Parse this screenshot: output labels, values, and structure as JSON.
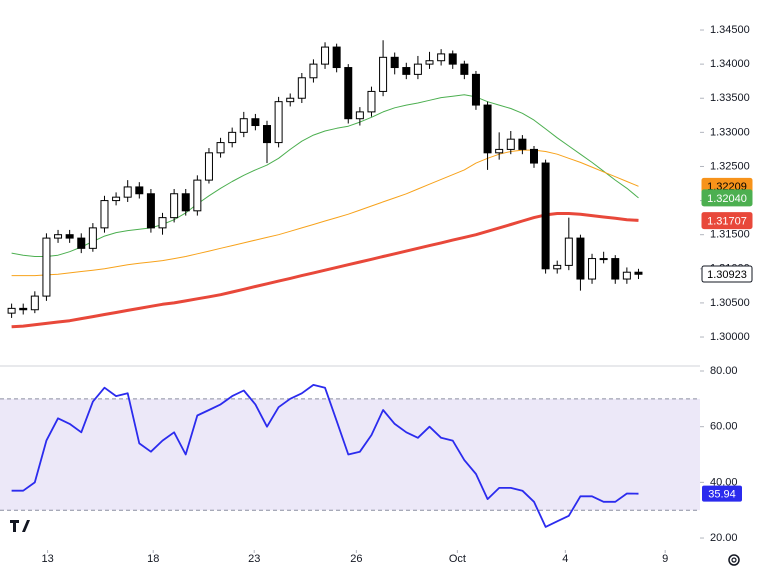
{
  "chart_data": [
    {
      "type": "candlestick",
      "xlim": [
        -1,
        59.3
      ],
      "ylim": [
        1.2959,
        1.3494
      ],
      "yticks": [
        {
          "value": 1.345,
          "label": "1.34500"
        },
        {
          "value": 1.34,
          "label": "1.34000"
        },
        {
          "value": 1.335,
          "label": "1.33500"
        },
        {
          "value": 1.33,
          "label": "1.33000"
        },
        {
          "value": 1.325,
          "label": "1.32500"
        },
        {
          "value": 1.32,
          "label": "1.32000"
        },
        {
          "value": 1.315,
          "label": "1.31500"
        },
        {
          "value": 1.31,
          "label": "1.31000"
        },
        {
          "value": 1.305,
          "label": "1.30500"
        },
        {
          "value": 1.3,
          "label": "1.30000"
        }
      ],
      "up_color": "#ffffff",
      "down_color": "#000000",
      "wick_color": "#000000",
      "open": [
        1.3035,
        1.3042,
        1.304,
        1.306,
        1.3145,
        1.315,
        1.3145,
        1.313,
        1.316,
        1.32,
        1.3205,
        1.322,
        1.321,
        1.316,
        1.3175,
        1.321,
        1.3185,
        1.323,
        1.327,
        1.3285,
        1.33,
        1.332,
        1.331,
        1.3285,
        1.3345,
        1.335,
        1.338,
        1.34,
        1.3425,
        1.3395,
        1.332,
        1.333,
        1.336,
        1.341,
        1.3395,
        1.3385,
        1.34,
        1.3405,
        1.3415,
        1.34,
        1.3385,
        1.334,
        1.327,
        1.3275,
        1.329,
        1.3275,
        1.3255,
        1.31,
        1.3105,
        1.3145,
        1.3085,
        1.3115,
        1.3115,
        1.3085,
        1.3095
      ],
      "high": [
        1.3049,
        1.3049,
        1.3067,
        1.3152,
        1.3157,
        1.3157,
        1.3152,
        1.3167,
        1.3207,
        1.3212,
        1.323,
        1.3227,
        1.3217,
        1.3182,
        1.3217,
        1.3217,
        1.3237,
        1.3277,
        1.3292,
        1.3307,
        1.333,
        1.3327,
        1.3317,
        1.3352,
        1.3357,
        1.3387,
        1.3407,
        1.3432,
        1.343,
        1.34,
        1.3337,
        1.3367,
        1.3435,
        1.3417,
        1.3402,
        1.3412,
        1.3418,
        1.3422,
        1.342,
        1.3405,
        1.339,
        1.3345,
        1.33,
        1.3302,
        1.3296,
        1.328,
        1.326,
        1.3112,
        1.3175,
        1.315,
        1.3122,
        1.3125,
        1.312,
        1.3102,
        1.31
      ],
      "low": [
        1.3028,
        1.3033,
        1.3035,
        1.3053,
        1.3138,
        1.3138,
        1.3123,
        1.3125,
        1.3153,
        1.3193,
        1.3198,
        1.3203,
        1.3153,
        1.315,
        1.3168,
        1.3178,
        1.3178,
        1.3225,
        1.3263,
        1.3278,
        1.3293,
        1.3303,
        1.3255,
        1.3278,
        1.3338,
        1.3343,
        1.3373,
        1.3393,
        1.3388,
        1.3313,
        1.331,
        1.3323,
        1.3353,
        1.3385,
        1.3378,
        1.3378,
        1.3393,
        1.3398,
        1.3393,
        1.3378,
        1.3333,
        1.3245,
        1.326,
        1.3268,
        1.3268,
        1.3248,
        1.3093,
        1.3093,
        1.3098,
        1.3068,
        1.3078,
        1.3108,
        1.3078,
        1.3078,
        1.3085
      ],
      "close": [
        1.3042,
        1.304,
        1.306,
        1.3145,
        1.315,
        1.3145,
        1.313,
        1.316,
        1.32,
        1.3205,
        1.322,
        1.321,
        1.316,
        1.3175,
        1.321,
        1.3185,
        1.323,
        1.327,
        1.3285,
        1.33,
        1.332,
        1.331,
        1.3285,
        1.3345,
        1.335,
        1.338,
        1.34,
        1.3425,
        1.3395,
        1.332,
        1.333,
        1.336,
        1.341,
        1.3395,
        1.3385,
        1.34,
        1.3405,
        1.3415,
        1.34,
        1.3385,
        1.334,
        1.327,
        1.3275,
        1.329,
        1.3275,
        1.3255,
        1.31,
        1.3105,
        1.3145,
        1.3085,
        1.3115,
        1.3115,
        1.3085,
        1.3095,
        1.3092
      ],
      "series": [
        {
          "color": "#4caf50",
          "width": 1,
          "values": [
            1.3123,
            1.312,
            1.3118,
            1.3118,
            1.312,
            1.3125,
            1.3132,
            1.314,
            1.3148,
            1.3153,
            1.3156,
            1.3158,
            1.316,
            1.3165,
            1.3172,
            1.3182,
            1.3195,
            1.3207,
            1.3218,
            1.3228,
            1.3237,
            1.3245,
            1.3252,
            1.3262,
            1.3275,
            1.3287,
            1.3296,
            1.3302,
            1.3306,
            1.3309,
            1.3315,
            1.3322,
            1.333,
            1.3336,
            1.334,
            1.3343,
            1.3347,
            1.3351,
            1.3353,
            1.3355,
            1.3352,
            1.3345,
            1.334,
            1.3335,
            1.3328,
            1.3318,
            1.3305,
            1.3292,
            1.328,
            1.3268,
            1.3256,
            1.3243,
            1.323,
            1.3218,
            1.3204
          ]
        },
        {
          "color": "#f7a21b",
          "width": 1,
          "values": [
            1.309,
            1.309,
            1.309,
            1.3091,
            1.3092,
            1.3094,
            1.3096,
            1.3098,
            1.31,
            1.3103,
            1.3106,
            1.3108,
            1.311,
            1.3112,
            1.3115,
            1.3118,
            1.3122,
            1.3126,
            1.313,
            1.3134,
            1.3138,
            1.3142,
            1.3146,
            1.315,
            1.3155,
            1.316,
            1.3165,
            1.317,
            1.3175,
            1.318,
            1.3186,
            1.3192,
            1.3198,
            1.3204,
            1.321,
            1.3217,
            1.3224,
            1.3231,
            1.3238,
            1.3245,
            1.3255,
            1.3262,
            1.3268,
            1.3272,
            1.3274,
            1.3274,
            1.3272,
            1.3268,
            1.3262,
            1.3256,
            1.3249,
            1.3242,
            1.3235,
            1.3228,
            1.3221
          ]
        },
        {
          "color": "#e8483a",
          "width": 3,
          "values": [
            1.3015,
            1.3016,
            1.3018,
            1.302,
            1.3022,
            1.3024,
            1.3027,
            1.303,
            1.3033,
            1.3036,
            1.3039,
            1.3042,
            1.3045,
            1.3048,
            1.305,
            1.3053,
            1.3056,
            1.3059,
            1.3062,
            1.3066,
            1.307,
            1.3074,
            1.3078,
            1.3082,
            1.3086,
            1.309,
            1.3094,
            1.3098,
            1.3102,
            1.3106,
            1.311,
            1.3114,
            1.3118,
            1.3122,
            1.3126,
            1.313,
            1.3134,
            1.3138,
            1.3142,
            1.3146,
            1.315,
            1.3155,
            1.316,
            1.3165,
            1.317,
            1.3175,
            1.3179,
            1.3181,
            1.3181,
            1.318,
            1.3178,
            1.3176,
            1.3174,
            1.3172,
            1.3171
          ]
        }
      ],
      "price_tags": [
        {
          "value": 1.32209,
          "label": "1.32209",
          "color": "#f7931a",
          "text_color": "#000000"
        },
        {
          "value": 1.3204,
          "label": "1.32040",
          "color": "#4caf50",
          "text_color": "#ffffff"
        },
        {
          "value": 1.31707,
          "label": "1.31707",
          "color": "#e8483a",
          "text_color": "#ffffff"
        },
        {
          "value": 1.30923,
          "label": "1.30923",
          "color": "#ffffff",
          "text_color": "#000000"
        }
      ]
    },
    {
      "type": "line",
      "xlim": [
        -1,
        59.3
      ],
      "ylim": [
        15.7,
        81.8
      ],
      "yticks": [
        {
          "value": 80,
          "label": "80.00"
        },
        {
          "value": 60,
          "label": "60.00"
        },
        {
          "value": 40,
          "label": "40.00"
        },
        {
          "value": 20,
          "label": "20.00"
        }
      ],
      "xticks": [
        {
          "value": 3.1,
          "label": "13"
        },
        {
          "value": 12.2,
          "label": "18"
        },
        {
          "value": 20.9,
          "label": "23"
        },
        {
          "value": 29.7,
          "label": "26"
        },
        {
          "value": 38.4,
          "label": "Oct"
        },
        {
          "value": 47.7,
          "label": "4"
        },
        {
          "value": 56.3,
          "label": "9"
        }
      ],
      "band": [
        30,
        70
      ],
      "band_color": "#ece8f8",
      "series": [
        {
          "color": "#2b2bee",
          "values": [
            37,
            37,
            40,
            55,
            63,
            61,
            58,
            69,
            74,
            71,
            72,
            54,
            51,
            55,
            58,
            50,
            64,
            66,
            68,
            71,
            73,
            68,
            60,
            67,
            70,
            72,
            75,
            74,
            62,
            50,
            51,
            57,
            66,
            61,
            58,
            56,
            60,
            56,
            55,
            48,
            43,
            34,
            38,
            38,
            37,
            33,
            24,
            26,
            28,
            35,
            35,
            33,
            33,
            36,
            35.94
          ]
        }
      ],
      "last_tag": {
        "value": 35.94,
        "color": "#2b2bee"
      }
    }
  ]
}
